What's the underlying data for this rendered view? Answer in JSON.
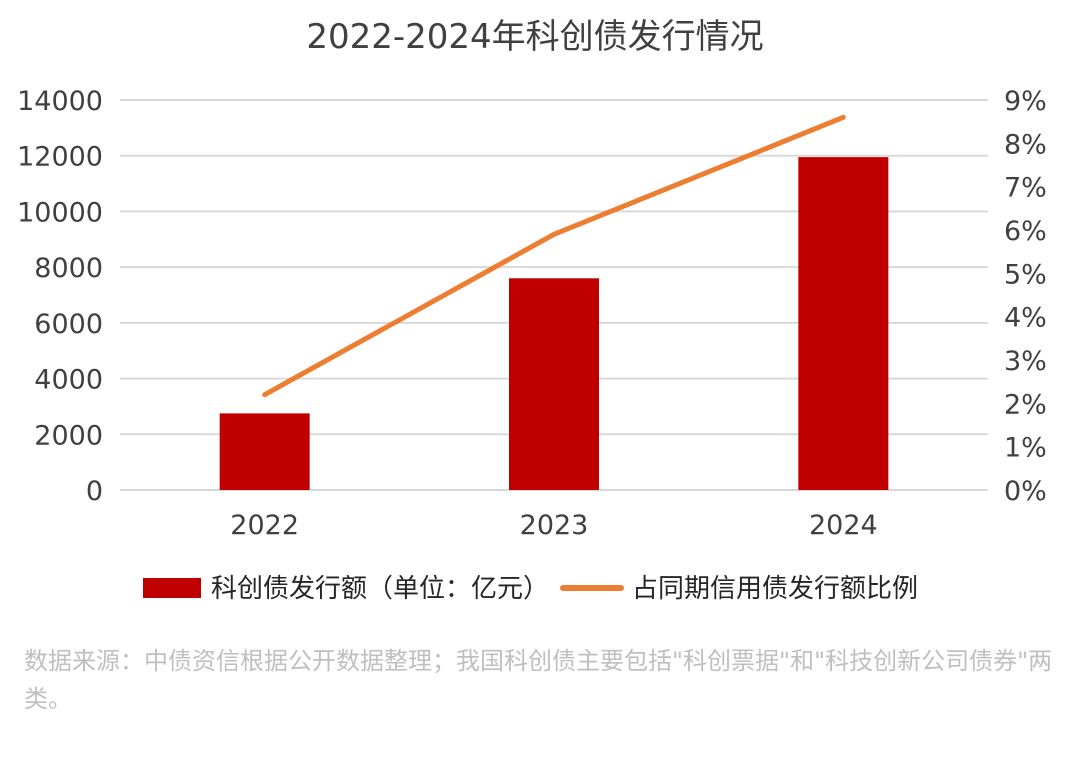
{
  "chart_data": {
    "type": "bar",
    "title": "2022-2024年科创债发行情况",
    "categories": [
      "2022",
      "2023",
      "2024"
    ],
    "series": [
      {
        "name": "科创债发行额（单位：亿元）",
        "type": "bar",
        "axis": "left",
        "color": "#c00000",
        "values": [
          2750,
          7600,
          11950
        ]
      },
      {
        "name": "占同期信用债发行额比例",
        "type": "line",
        "axis": "right",
        "color": "#ed7d31",
        "values": [
          2.2,
          5.9,
          8.6
        ]
      }
    ],
    "y_left": {
      "ticks": [
        "0",
        "2000",
        "4000",
        "6000",
        "8000",
        "10000",
        "12000",
        "14000"
      ],
      "ylim": [
        0,
        14000
      ]
    },
    "y_right": {
      "ticks": [
        "0%",
        "1%",
        "2%",
        "3%",
        "4%",
        "5%",
        "6%",
        "7%",
        "8%",
        "9%"
      ],
      "ylim": [
        0,
        9
      ]
    },
    "grid": true,
    "legend_position": "bottom"
  },
  "footnote": "数据来源：中债资信根据公开数据整理；我国科创债主要包括\"科创票据\"和\"科技创新公司债券\"两类。"
}
